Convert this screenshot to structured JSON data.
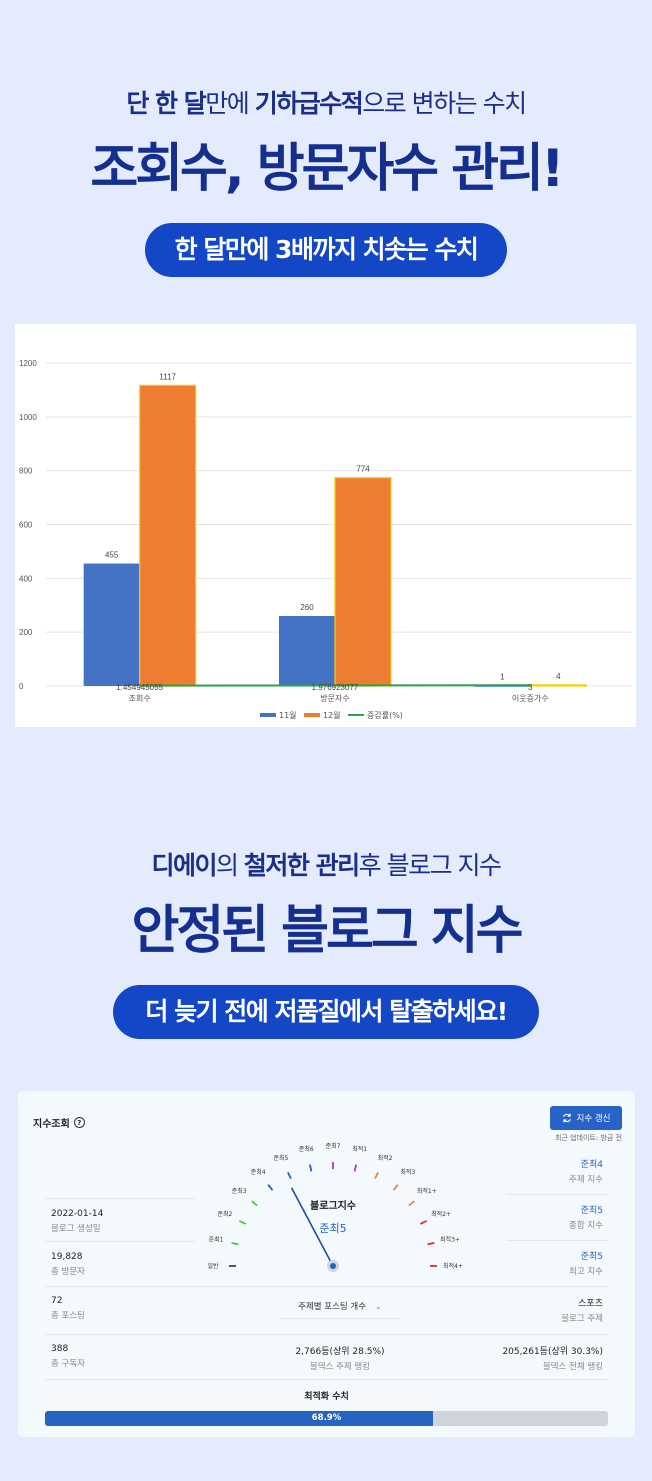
{
  "section1": {
    "subtitle_parts": [
      {
        "text": "단 한 달",
        "bold": true,
        "highlight": true
      },
      {
        "text": "만에 ",
        "bold": false,
        "highlight": false
      },
      {
        "text": "기하급수적",
        "bold": true,
        "highlight": true
      },
      {
        "text": "으로 변하는 수치",
        "bold": false,
        "highlight": false
      }
    ],
    "title": "조회수, 방문자수 관리!",
    "pill": "한 달만에 3배까지 치솟는 수치"
  },
  "chart_data": {
    "type": "bar",
    "title": "",
    "xlabel": "",
    "ylabel": "",
    "ylim": [
      0,
      1200
    ],
    "yticks": [
      0,
      200,
      400,
      600,
      800,
      1000,
      1200
    ],
    "grid": true,
    "legend_position": "bottom",
    "categories": [
      "조회수",
      "방문자수",
      "이웃증가수"
    ],
    "series": [
      {
        "name": "11월",
        "kind": "bar",
        "color": "#4472c4",
        "values": [
          455,
          260,
          1
        ]
      },
      {
        "name": "12월",
        "kind": "bar",
        "color": "#ed7d31",
        "values": [
          1117,
          774,
          4
        ]
      },
      {
        "name": "증감률(%)",
        "kind": "line",
        "color": "#22a64a",
        "values": [
          1.454945055,
          1.976923077,
          3
        ]
      }
    ],
    "data_labels": {
      "11월": [
        "455",
        "260",
        "1"
      ],
      "12월": [
        "1117",
        "774",
        "4"
      ],
      "증감률(%)": [
        "1.454945055",
        "1.976923077",
        "3"
      ]
    }
  },
  "section2": {
    "subtitle_parts": [
      {
        "text": "디에이",
        "bold": true,
        "highlight": true
      },
      {
        "text": "의 ",
        "bold": false,
        "highlight": false
      },
      {
        "text": "철저한 관리",
        "bold": true,
        "highlight": true
      },
      {
        "text": "후 블로그 지수",
        "bold": false,
        "highlight": false
      }
    ],
    "title": "안정된 블로그 지수",
    "pill": "더 늦기 전에 저품질에서 탈출하세요!"
  },
  "index_card": {
    "title": "지수조회",
    "help_icon": "?",
    "refresh_button": "지수 갱신",
    "update_note": "최근 업데이트:  방금 전",
    "left_stats": [
      {
        "value": "2022-01-14",
        "label": "블로그 생성일"
      },
      {
        "value": "19,828",
        "label": "총 방문자"
      },
      {
        "value": "72",
        "label": "총 포스팅"
      },
      {
        "value": "388",
        "label": "총 구독자"
      }
    ],
    "right_stats": [
      {
        "value": "준최4",
        "label": "주제 지수"
      },
      {
        "value": "준최5",
        "label": "종합 지수"
      },
      {
        "value": "준최5",
        "label": "최고 지수"
      },
      {
        "value": "스포츠",
        "label": "블로그 주제"
      },
      {
        "value": "205,261등(상위 30.3%)",
        "label": "블덱스 전체 랭킹"
      }
    ],
    "center_stat": {
      "value": "2,766등(상위 28.5%)",
      "label": "블덱스 주제 랭킹"
    },
    "gauge": {
      "title": "블로그지수",
      "value": "준최5",
      "levels": [
        "일반",
        "준최1",
        "준최2",
        "준최3",
        "준최4",
        "준최5",
        "준최6",
        "준최7",
        "최적1",
        "최적2",
        "최적3",
        "최적1+",
        "최적2+",
        "최적3+",
        "최적4+"
      ]
    },
    "dropdown_label": "주제별 포스팅 개수",
    "optimization": {
      "title": "최적화 수치",
      "percent": "68.9%",
      "value": 68.9
    }
  },
  "colors": {
    "page_bg": "#e3ebfc",
    "navy": "#142f8e",
    "pill_blue": "#1447c6",
    "accent_blue": "#2763c6"
  }
}
